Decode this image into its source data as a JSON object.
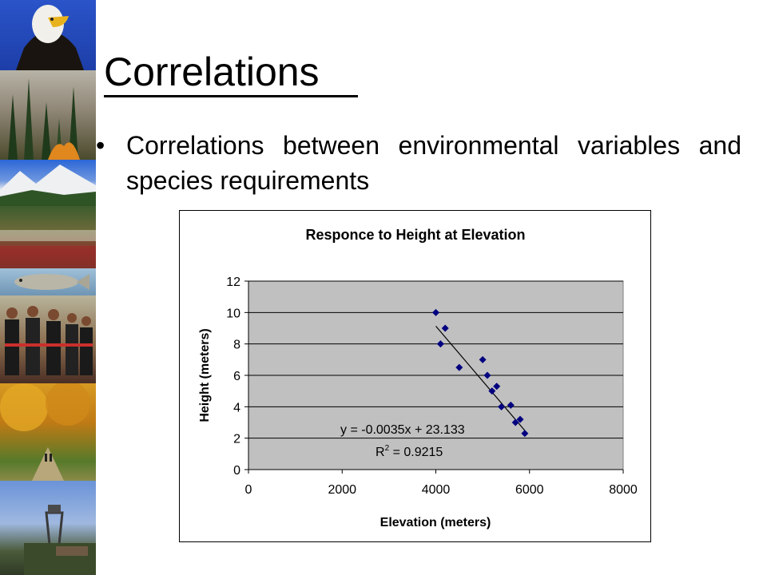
{
  "slide": {
    "title": "Correlations",
    "bullet_glyph": "•",
    "bullet_text": "Correlations between environmental variables and species requirements"
  },
  "sidebar": {
    "photos": [
      "eagle-photo",
      "forest-fire-photo",
      "mountain-photo",
      "meadow-photo",
      "fish-photo",
      "people-photo",
      "autumn-trail-photo",
      "mine-photo"
    ]
  },
  "chart_data": {
    "type": "scatter",
    "title": "Responce to Height at Elevation",
    "xlabel": "Elevation (meters)",
    "ylabel": "Height (meters)",
    "xlim": [
      0,
      8000
    ],
    "ylim": [
      0,
      12
    ],
    "x_ticks": [
      "0",
      "2000",
      "4000",
      "6000",
      "8000"
    ],
    "y_ticks": [
      "0",
      "2",
      "4",
      "6",
      "8",
      "10",
      "12"
    ],
    "grid": true,
    "plot_background": "#c0c0c0",
    "marker_color": "#000080",
    "points": [
      {
        "x": 4000,
        "y": 10
      },
      {
        "x": 4100,
        "y": 8
      },
      {
        "x": 4200,
        "y": 9
      },
      {
        "x": 4500,
        "y": 6.5
      },
      {
        "x": 5000,
        "y": 7
      },
      {
        "x": 5100,
        "y": 6
      },
      {
        "x": 5200,
        "y": 5
      },
      {
        "x": 5300,
        "y": 5.3
      },
      {
        "x": 5400,
        "y": 4
      },
      {
        "x": 5600,
        "y": 4.1
      },
      {
        "x": 5700,
        "y": 3
      },
      {
        "x": 5800,
        "y": 3.2
      },
      {
        "x": 5900,
        "y": 2.3
      }
    ],
    "trendline": {
      "slope": -0.0035,
      "intercept": 23.133,
      "x_range": [
        4000,
        5900
      ],
      "equation_label": "y = -0.0035x + 23.133",
      "r2_prefix": "R",
      "r2_superscript": "2",
      "r2_value": " = 0.9215"
    }
  }
}
